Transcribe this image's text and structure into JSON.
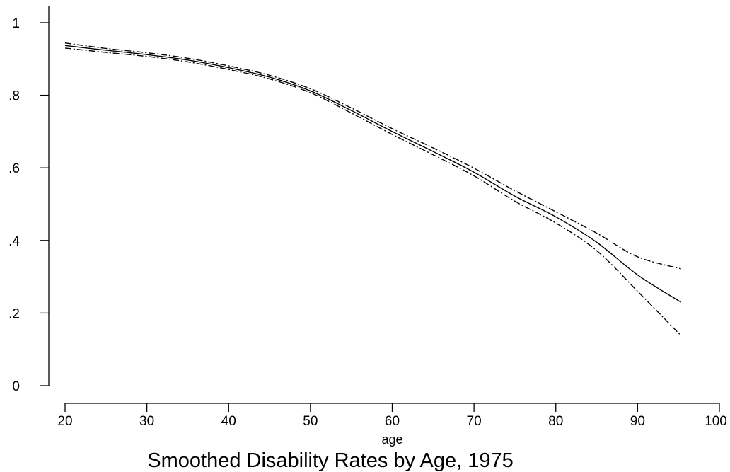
{
  "chart_data": {
    "type": "line",
    "title": "Smoothed Disability Rates by Age, 1975",
    "xlabel": "age",
    "ylabel": "",
    "xlim": [
      20,
      100
    ],
    "ylim": [
      0,
      1
    ],
    "x_ticks": [
      20,
      30,
      40,
      50,
      60,
      70,
      80,
      90,
      100
    ],
    "x_tick_labels": [
      "20",
      "30",
      "40",
      "50",
      "60",
      "70",
      "80",
      "90",
      "100"
    ],
    "y_ticks": [
      0,
      0.2,
      0.4,
      0.6,
      0.8,
      1
    ],
    "y_tick_labels": [
      "0",
      ".2",
      ".4",
      ".6",
      ".8",
      "1"
    ],
    "grid": false,
    "legend": "none",
    "x": [
      20,
      25,
      30,
      35,
      40,
      45,
      50,
      55,
      60,
      65,
      70,
      75,
      80,
      85,
      90,
      95.3
    ],
    "series": [
      {
        "style": "solid",
        "values": [
          0.937,
          0.924,
          0.912,
          0.897,
          0.876,
          0.85,
          0.812,
          0.758,
          0.7,
          0.645,
          0.588,
          0.522,
          0.465,
          0.395,
          0.305,
          0.23
        ]
      },
      {
        "style": "dash-dot",
        "values": [
          0.944,
          0.929,
          0.917,
          0.902,
          0.881,
          0.855,
          0.818,
          0.765,
          0.708,
          0.655,
          0.599,
          0.537,
          0.479,
          0.42,
          0.355,
          0.322
        ]
      },
      {
        "style": "dash-dot",
        "values": [
          0.93,
          0.918,
          0.907,
          0.892,
          0.871,
          0.845,
          0.807,
          0.751,
          0.692,
          0.636,
          0.578,
          0.508,
          0.448,
          0.372,
          0.26,
          0.138
        ]
      }
    ]
  }
}
